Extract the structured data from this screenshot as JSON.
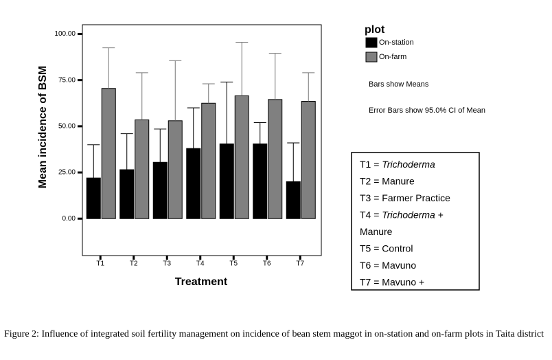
{
  "chart_data": {
    "type": "bar",
    "y_label": "Mean incidence of BSM",
    "x_label": "Treatment",
    "categories": [
      "T1",
      "T2",
      "T3",
      "T4",
      "T5",
      "T6",
      "T7"
    ],
    "legend_title": "plot",
    "series": [
      {
        "name": "On-station",
        "color": "#000000",
        "values": [
          22,
          26.5,
          30.5,
          38,
          40.5,
          40.5,
          20
        ],
        "errors": [
          18,
          19.5,
          18,
          22,
          33.5,
          11.5,
          21
        ]
      },
      {
        "name": "On-farm",
        "color": "#808080",
        "values": [
          70.5,
          53.5,
          53,
          62.5,
          66.5,
          64.5,
          63.5
        ],
        "errors": [
          22,
          25.5,
          32.5,
          10.5,
          29,
          25,
          15.5
        ]
      }
    ],
    "ylim": [
      -20,
      105
    ],
    "yticks": [
      {
        "value": 0,
        "label": "0.00"
      },
      {
        "value": 25,
        "label": "25.00"
      },
      {
        "value": 50,
        "label": "50.00"
      },
      {
        "value": 75,
        "label": "75.00"
      },
      {
        "value": 100,
        "label": "100.00"
      }
    ],
    "notes": [
      "Bars show Means",
      "Error Bars show 95.0% CI of Mean"
    ]
  },
  "key_lines": [
    [
      "T1 = ",
      "Trichoderma"
    ],
    [
      "T2 = Manure"
    ],
    [
      "T3 = Farmer Practice"
    ],
    [
      "T4 = ",
      "Trichoderma",
      " +"
    ],
    [
      "Manure"
    ],
    [
      "T5 = Control"
    ],
    [
      "T6 = Mavuno"
    ],
    [
      "T7 = Mavuno +"
    ]
  ],
  "caption": "Figure 2: Influence of integrated soil fertility management on incidence of bean stem maggot in on-station and on-farm plots in Taita district"
}
